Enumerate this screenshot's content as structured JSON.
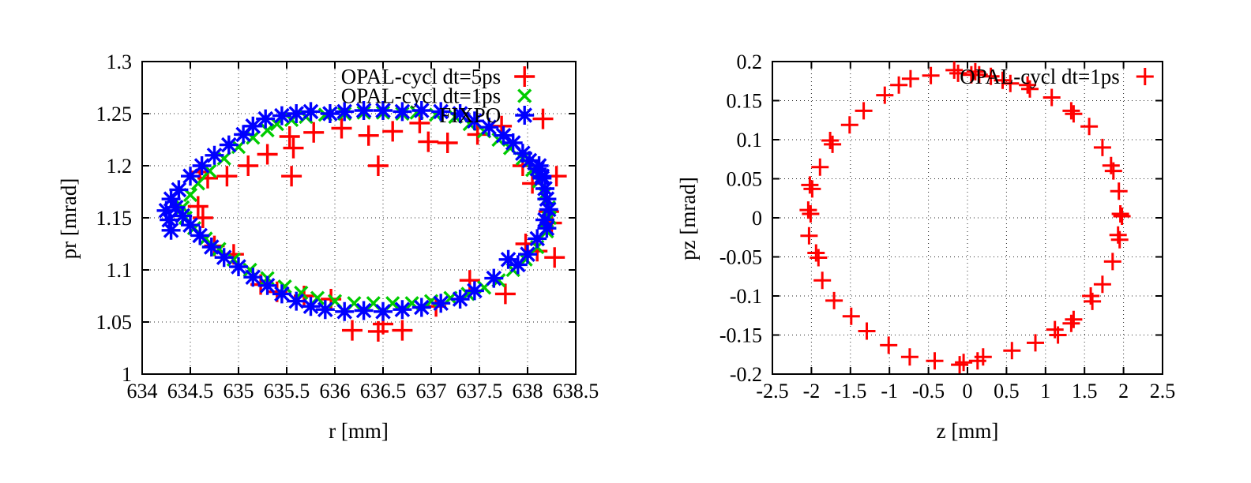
{
  "chart_data": [
    {
      "type": "scatter",
      "title": "",
      "xlabel": "r [mm]",
      "ylabel": "pr [mrad]",
      "xlim": [
        634,
        638.5
      ],
      "ylim": [
        1,
        1.3
      ],
      "grid": true,
      "legend_position": "inside top right",
      "xtick_values": [
        634,
        634.5,
        635,
        635.5,
        636,
        636.5,
        637,
        637.5,
        638,
        638.5
      ],
      "xtick_labels": [
        "634",
        "634.5",
        "635",
        "635.5",
        "636",
        "636.5",
        "637",
        "637.5",
        "638",
        "638.5"
      ],
      "ytick_values": [
        1,
        1.05,
        1.1,
        1.15,
        1.2,
        1.25,
        1.3
      ],
      "ytick_labels": [
        "1",
        "1.05",
        "1.1",
        "1.15",
        "1.2",
        "1.25",
        "1.3"
      ],
      "series": [
        {
          "name": "OPAL-cycl dt=5ps",
          "color": "#ff0000",
          "marker": "plus",
          "points": [
            [
              634.6,
              1.194
            ],
            [
              634.68,
              1.188
            ],
            [
              634.88,
              1.19
            ],
            [
              635.1,
              1.2
            ],
            [
              635.3,
              1.211
            ],
            [
              635.53,
              1.228
            ],
            [
              635.57,
              1.217
            ],
            [
              635.78,
              1.232
            ],
            [
              636.07,
              1.236
            ],
            [
              636.35,
              1.229
            ],
            [
              636.6,
              1.233
            ],
            [
              636.88,
              1.241
            ],
            [
              636.97,
              1.223
            ],
            [
              637.17,
              1.222
            ],
            [
              637.48,
              1.23
            ],
            [
              637.73,
              1.238
            ],
            [
              637.95,
              1.2
            ],
            [
              638.16,
              1.245
            ],
            [
              638.05,
              1.183
            ],
            [
              638.3,
              1.19
            ],
            [
              638.22,
              1.156
            ],
            [
              638.25,
              1.145
            ],
            [
              638.1,
              1.118
            ],
            [
              638.28,
              1.112
            ],
            [
              637.98,
              1.125
            ],
            [
              637.77,
              1.077
            ],
            [
              637.4,
              1.09
            ],
            [
              637.05,
              1.065
            ],
            [
              636.7,
              1.042
            ],
            [
              636.5,
              1.048
            ],
            [
              636.45,
              1.041
            ],
            [
              636.18,
              1.042
            ],
            [
              635.96,
              1.072
            ],
            [
              635.68,
              1.075
            ],
            [
              635.4,
              1.079
            ],
            [
              635.23,
              1.086
            ],
            [
              634.95,
              1.115
            ],
            [
              634.75,
              1.123
            ],
            [
              634.63,
              1.15
            ],
            [
              634.58,
              1.161
            ],
            [
              636.45,
              1.2
            ],
            [
              635.55,
              1.19
            ]
          ]
        },
        {
          "name": "OPAL-cycl dt=1ps",
          "color": "#00cc00",
          "marker": "cross",
          "points": [
            [
              635.4,
              1.24
            ],
            [
              635.55,
              1.244
            ],
            [
              635.7,
              1.247
            ],
            [
              635.9,
              1.249
            ],
            [
              636.1,
              1.25
            ],
            [
              636.3,
              1.251
            ],
            [
              636.5,
              1.251
            ],
            [
              636.7,
              1.25
            ],
            [
              636.85,
              1.251
            ],
            [
              637.05,
              1.249
            ],
            [
              637.25,
              1.247
            ],
            [
              637.4,
              1.24
            ],
            [
              637.55,
              1.233
            ],
            [
              637.7,
              1.225
            ],
            [
              637.82,
              1.217
            ],
            [
              637.95,
              1.207
            ],
            [
              638.05,
              1.196
            ],
            [
              638.12,
              1.185
            ],
            [
              638.18,
              1.173
            ],
            [
              638.22,
              1.16
            ],
            [
              638.23,
              1.15
            ],
            [
              638.2,
              1.137
            ],
            [
              638.1,
              1.122
            ],
            [
              637.98,
              1.11
            ],
            [
              637.85,
              1.1
            ],
            [
              637.7,
              1.09
            ],
            [
              637.55,
              1.083
            ],
            [
              637.38,
              1.077
            ],
            [
              637.2,
              1.073
            ],
            [
              637.0,
              1.07
            ],
            [
              636.8,
              1.068
            ],
            [
              636.6,
              1.068
            ],
            [
              636.4,
              1.068
            ],
            [
              636.2,
              1.068
            ],
            [
              636.0,
              1.07
            ],
            [
              635.82,
              1.073
            ],
            [
              635.65,
              1.078
            ],
            [
              635.48,
              1.084
            ],
            [
              635.3,
              1.092
            ],
            [
              635.12,
              1.1
            ],
            [
              634.95,
              1.11
            ],
            [
              634.8,
              1.12
            ],
            [
              634.66,
              1.13
            ],
            [
              634.54,
              1.14
            ],
            [
              634.45,
              1.15
            ],
            [
              634.42,
              1.16
            ],
            [
              634.5,
              1.172
            ],
            [
              634.58,
              1.183
            ],
            [
              634.7,
              1.195
            ],
            [
              634.85,
              1.207
            ],
            [
              635.0,
              1.218
            ],
            [
              635.15,
              1.227
            ],
            [
              635.3,
              1.234
            ]
          ]
        },
        {
          "name": "FIXPO",
          "color": "#0000ff",
          "marker": "asterisk",
          "points": [
            [
              635.28,
              1.245
            ],
            [
              635.45,
              1.248
            ],
            [
              635.6,
              1.25
            ],
            [
              635.75,
              1.252
            ],
            [
              635.95,
              1.25
            ],
            [
              636.1,
              1.252
            ],
            [
              636.3,
              1.253
            ],
            [
              636.5,
              1.253
            ],
            [
              636.7,
              1.252
            ],
            [
              636.9,
              1.253
            ],
            [
              637.1,
              1.252
            ],
            [
              637.3,
              1.25
            ],
            [
              637.45,
              1.243
            ],
            [
              637.6,
              1.237
            ],
            [
              637.75,
              1.229
            ],
            [
              637.85,
              1.222
            ],
            [
              637.95,
              1.212
            ],
            [
              638.02,
              1.205
            ],
            [
              638.1,
              1.197
            ],
            [
              638.15,
              1.188
            ],
            [
              638.18,
              1.178
            ],
            [
              638.2,
              1.168
            ],
            [
              638.22,
              1.158
            ],
            [
              638.15,
              1.19
            ],
            [
              638.12,
              1.2
            ],
            [
              638.18,
              1.148
            ],
            [
              638.2,
              1.14
            ],
            [
              638.1,
              1.13
            ],
            [
              638.0,
              1.115
            ],
            [
              637.9,
              1.105
            ],
            [
              637.8,
              1.11
            ],
            [
              637.65,
              1.092
            ],
            [
              637.45,
              1.08
            ],
            [
              637.3,
              1.072
            ],
            [
              637.1,
              1.068
            ],
            [
              636.9,
              1.064
            ],
            [
              636.7,
              1.062
            ],
            [
              636.5,
              1.06
            ],
            [
              636.3,
              1.061
            ],
            [
              636.1,
              1.06
            ],
            [
              635.9,
              1.062
            ],
            [
              635.75,
              1.065
            ],
            [
              635.6,
              1.07
            ],
            [
              635.45,
              1.077
            ],
            [
              635.3,
              1.085
            ],
            [
              635.15,
              1.093
            ],
            [
              635.0,
              1.103
            ],
            [
              634.85,
              1.112
            ],
            [
              634.72,
              1.122
            ],
            [
              634.6,
              1.133
            ],
            [
              634.5,
              1.143
            ],
            [
              634.42,
              1.152
            ],
            [
              634.35,
              1.16
            ],
            [
              634.3,
              1.138
            ],
            [
              634.28,
              1.148
            ],
            [
              634.25,
              1.157
            ],
            [
              634.3,
              1.168
            ],
            [
              634.38,
              1.177
            ],
            [
              634.5,
              1.19
            ],
            [
              634.62,
              1.2
            ],
            [
              634.75,
              1.21
            ],
            [
              634.9,
              1.22
            ],
            [
              635.05,
              1.23
            ],
            [
              635.15,
              1.238
            ]
          ]
        }
      ]
    },
    {
      "type": "scatter",
      "title": "",
      "xlabel": "z [mm]",
      "ylabel": "pz [mrad]",
      "xlim": [
        -2.5,
        2.5
      ],
      "ylim": [
        -0.2,
        0.2
      ],
      "grid": true,
      "legend_position": "inside top right",
      "xtick_values": [
        -2.5,
        -2,
        -1.5,
        -1,
        -0.5,
        0,
        0.5,
        1,
        1.5,
        2,
        2.5
      ],
      "xtick_labels": [
        "-2.5",
        "-2",
        "-1.5",
        "-1",
        "-0.5",
        "0",
        "0.5",
        "1",
        "1.5",
        "2",
        "2.5"
      ],
      "ytick_values": [
        -0.2,
        -0.15,
        -0.1,
        -0.05,
        0,
        0.05,
        0.1,
        0.15,
        0.2
      ],
      "ytick_labels": [
        "-0.2",
        "-0.15",
        "-0.1",
        "-0.05",
        "0",
        "0.05",
        "0.1",
        "0.15",
        "0.2"
      ],
      "series": [
        {
          "name": "OPAL-cycl dt=1ps",
          "color": "#ff0000",
          "marker": "plus",
          "points": [
            [
              -0.17,
              0.189
            ],
            [
              -0.12,
              0.185
            ],
            [
              -0.47,
              0.182
            ],
            [
              -0.73,
              0.178
            ],
            [
              -0.88,
              0.17
            ],
            [
              -1.06,
              0.157
            ],
            [
              -1.33,
              0.137
            ],
            [
              -1.51,
              0.119
            ],
            [
              -1.73,
              0.094
            ],
            [
              -1.76,
              0.099
            ],
            [
              -1.89,
              0.065
            ],
            [
              -1.99,
              0.037
            ],
            [
              -2.02,
              0.042
            ],
            [
              -2.01,
              0.005
            ],
            [
              -2.04,
              0.01
            ],
            [
              -2.03,
              -0.023
            ],
            [
              -1.91,
              -0.051
            ],
            [
              -1.94,
              -0.045
            ],
            [
              -1.86,
              -0.08
            ],
            [
              -1.71,
              -0.106
            ],
            [
              -1.49,
              -0.126
            ],
            [
              -1.29,
              -0.145
            ],
            [
              -1.01,
              -0.163
            ],
            [
              -0.74,
              -0.178
            ],
            [
              -0.42,
              -0.183
            ],
            [
              -0.1,
              -0.188
            ],
            [
              -0.05,
              -0.185
            ],
            [
              0.13,
              -0.183
            ],
            [
              0.2,
              -0.178
            ],
            [
              0.57,
              -0.17
            ],
            [
              0.87,
              -0.16
            ],
            [
              1.12,
              -0.143
            ],
            [
              1.16,
              -0.15
            ],
            [
              1.33,
              -0.135
            ],
            [
              1.36,
              -0.13
            ],
            [
              1.58,
              -0.1
            ],
            [
              1.6,
              -0.107
            ],
            [
              1.73,
              -0.085
            ],
            [
              1.86,
              -0.056
            ],
            [
              1.93,
              -0.022
            ],
            [
              1.95,
              -0.028
            ],
            [
              1.96,
              0.005
            ],
            [
              1.98,
              0.002
            ],
            [
              1.94,
              0.034
            ],
            [
              1.87,
              0.06
            ],
            [
              1.84,
              0.067
            ],
            [
              1.73,
              0.09
            ],
            [
              1.56,
              0.117
            ],
            [
              1.36,
              0.133
            ],
            [
              1.33,
              0.137
            ],
            [
              1.08,
              0.154
            ],
            [
              0.8,
              0.165
            ],
            [
              0.77,
              0.17
            ],
            [
              0.55,
              0.172
            ],
            [
              0.45,
              0.176
            ],
            [
              0.3,
              0.181
            ],
            [
              0.1,
              0.187
            ],
            [
              0.15,
              0.183
            ],
            [
              0.05,
              0.183
            ]
          ]
        }
      ]
    }
  ]
}
